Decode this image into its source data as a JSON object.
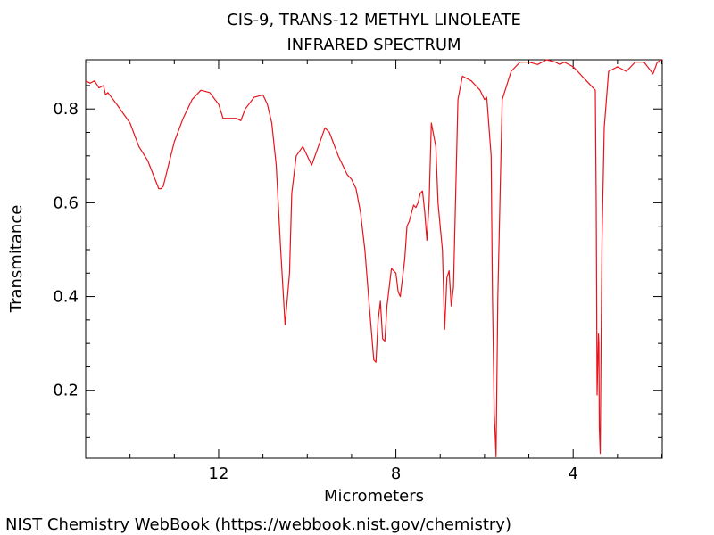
{
  "footer": "NIST Chemistry WebBook (https://webbook.nist.gov/chemistry)",
  "chart_data": {
    "type": "line",
    "title": "CIS-9, TRANS-12 METHYL LINOLEATE",
    "subtitle": "INFRARED SPECTRUM",
    "xlabel": "Micrometers",
    "ylabel": "Transmitance",
    "xlim": [
      15.0,
      1.99
    ],
    "ylim": [
      0.055,
      0.905
    ],
    "x_reversed": true,
    "xticks": [
      12,
      8,
      4
    ],
    "yticks": [
      0.2,
      0.4,
      0.6,
      0.8
    ],
    "x_minor_step": 1,
    "y_minor_step": 0.05,
    "line_color": "#e8141b",
    "series": [
      {
        "x": [
          15.0,
          14.9,
          14.8,
          14.7,
          14.6,
          14.55,
          14.5,
          14.3,
          14.0,
          13.8,
          13.6,
          13.35,
          13.3,
          13.25,
          13.0,
          12.8,
          12.6,
          12.4,
          12.2,
          12.0,
          11.9,
          11.6,
          11.5,
          11.4,
          11.2,
          11.0,
          10.9,
          10.8,
          10.7,
          10.6,
          10.5,
          10.4,
          10.35,
          10.25,
          10.1,
          9.9,
          9.75,
          9.6,
          9.5,
          9.3,
          9.1,
          9.0,
          8.9,
          8.8,
          8.7,
          8.6,
          8.5,
          8.45,
          8.4,
          8.35,
          8.3,
          8.25,
          8.2,
          8.1,
          8.0,
          7.95,
          7.9,
          7.8,
          7.75,
          7.7,
          7.6,
          7.55,
          7.5,
          7.45,
          7.4,
          7.35,
          7.3,
          7.25,
          7.2,
          7.1,
          7.05,
          7.0,
          6.95,
          6.9,
          6.85,
          6.8,
          6.75,
          6.7,
          6.6,
          6.5,
          6.3,
          6.1,
          6.0,
          5.95,
          5.85,
          5.82,
          5.78,
          5.74,
          5.7,
          5.6,
          5.4,
          5.2,
          5.0,
          4.8,
          4.6,
          4.4,
          4.3,
          4.2,
          4.0,
          3.9,
          3.8,
          3.7,
          3.5,
          3.48,
          3.46,
          3.43,
          3.42,
          3.41,
          3.39,
          3.37,
          3.35,
          3.3,
          3.2,
          3.1,
          3.0,
          2.8,
          2.6,
          2.4,
          2.2,
          2.1,
          2.0
        ],
        "y": [
          0.86,
          0.855,
          0.86,
          0.845,
          0.85,
          0.83,
          0.835,
          0.81,
          0.77,
          0.72,
          0.69,
          0.63,
          0.63,
          0.635,
          0.73,
          0.78,
          0.82,
          0.84,
          0.835,
          0.81,
          0.78,
          0.78,
          0.775,
          0.8,
          0.825,
          0.83,
          0.81,
          0.77,
          0.68,
          0.5,
          0.34,
          0.45,
          0.62,
          0.7,
          0.72,
          0.68,
          0.72,
          0.76,
          0.75,
          0.7,
          0.66,
          0.65,
          0.63,
          0.58,
          0.5,
          0.38,
          0.265,
          0.26,
          0.35,
          0.39,
          0.31,
          0.305,
          0.38,
          0.46,
          0.45,
          0.41,
          0.4,
          0.48,
          0.55,
          0.56,
          0.595,
          0.59,
          0.6,
          0.62,
          0.625,
          0.58,
          0.52,
          0.6,
          0.77,
          0.72,
          0.6,
          0.55,
          0.5,
          0.33,
          0.44,
          0.455,
          0.38,
          0.42,
          0.82,
          0.87,
          0.86,
          0.84,
          0.82,
          0.825,
          0.7,
          0.4,
          0.15,
          0.06,
          0.4,
          0.82,
          0.88,
          0.9,
          0.9,
          0.895,
          0.905,
          0.9,
          0.895,
          0.9,
          0.89,
          0.88,
          0.87,
          0.86,
          0.84,
          0.6,
          0.19,
          0.32,
          0.3,
          0.12,
          0.065,
          0.3,
          0.52,
          0.76,
          0.88,
          0.885,
          0.89,
          0.88,
          0.9,
          0.9,
          0.875,
          0.9,
          0.905
        ]
      }
    ]
  }
}
